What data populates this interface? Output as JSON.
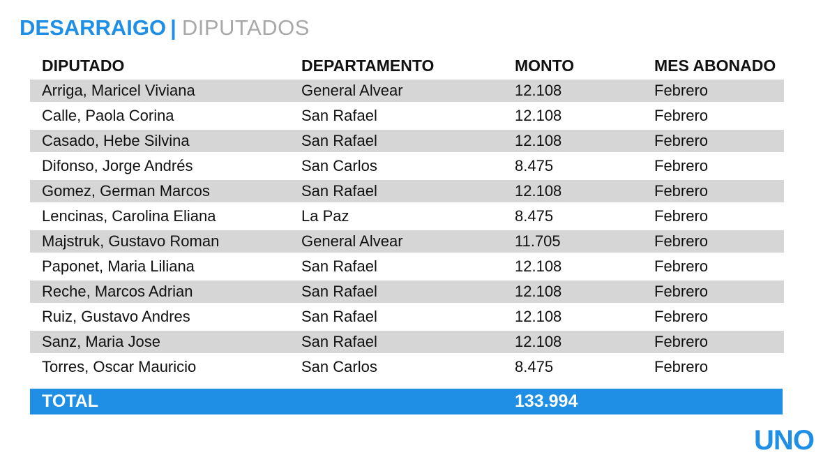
{
  "title": {
    "main": "DESARRAIGO",
    "separator": "|",
    "sub": "DIPUTADOS"
  },
  "table": {
    "headers": [
      "DIPUTADO",
      "DEPARTAMENTO",
      "MONTO",
      "MES ABONADO"
    ],
    "rows": [
      [
        "Arriga, Maricel Viviana",
        "General Alvear",
        "12.108",
        "Febrero"
      ],
      [
        "Calle, Paola Corina",
        "San Rafael",
        "12.108",
        "Febrero"
      ],
      [
        "Casado, Hebe Silvina",
        "San Rafael",
        "12.108",
        "Febrero"
      ],
      [
        "Difonso, Jorge Andrés",
        "San Carlos",
        "8.475",
        "Febrero"
      ],
      [
        "Gomez, German Marcos",
        "San Rafael",
        "12.108",
        "Febrero"
      ],
      [
        "Lencinas, Carolina Eliana",
        "La Paz",
        "8.475",
        "Febrero"
      ],
      [
        "Majstruk, Gustavo Roman",
        "General Alvear",
        "11.705",
        "Febrero"
      ],
      [
        "Paponet, Maria Liliana",
        "San Rafael",
        "12.108",
        "Febrero"
      ],
      [
        "Reche, Marcos Adrian",
        "San Rafael",
        "12.108",
        "Febrero"
      ],
      [
        "Ruiz, Gustavo Andres",
        "San Rafael",
        "12.108",
        "Febrero"
      ],
      [
        "Sanz, Maria Jose",
        "San Rafael",
        "12.108",
        "Febrero"
      ],
      [
        "Torres, Oscar Mauricio",
        "San Carlos",
        "8.475",
        "Febrero"
      ]
    ],
    "total": {
      "label": "TOTAL",
      "amount": "133.994"
    }
  },
  "logo": {
    "text": "UNO",
    "color": "#1f8fe6"
  },
  "colors": {
    "accent": "#1f8fe6",
    "stripe": "#d6d6d6",
    "subtitle": "#a8a8a8"
  }
}
